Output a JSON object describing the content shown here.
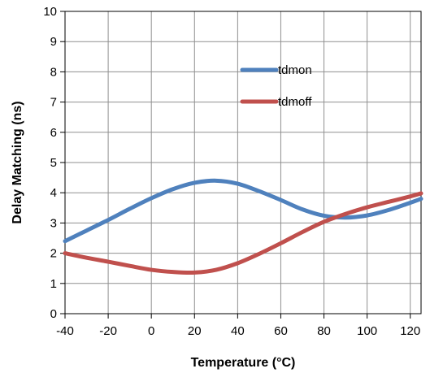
{
  "chart_data": {
    "type": "line",
    "title": "",
    "xlabel": "Temperature (°C)",
    "ylabel": "Delay Matching (ns)",
    "xlim": [
      -40,
      125
    ],
    "ylim": [
      0,
      10
    ],
    "xticks": [
      -40,
      -20,
      0,
      20,
      40,
      60,
      80,
      100,
      120
    ],
    "yticks": [
      0,
      1,
      2,
      3,
      4,
      5,
      6,
      7,
      8,
      9,
      10
    ],
    "grid": true,
    "legend_position": "top-center",
    "series": [
      {
        "name": "tdmon",
        "color": "#4f81bd",
        "points": [
          [
            -40,
            2.4
          ],
          [
            -30,
            2.75
          ],
          [
            -20,
            3.1
          ],
          [
            -10,
            3.47
          ],
          [
            0,
            3.82
          ],
          [
            10,
            4.12
          ],
          [
            20,
            4.33
          ],
          [
            30,
            4.4
          ],
          [
            40,
            4.3
          ],
          [
            50,
            4.05
          ],
          [
            60,
            3.76
          ],
          [
            70,
            3.45
          ],
          [
            80,
            3.24
          ],
          [
            90,
            3.18
          ],
          [
            100,
            3.25
          ],
          [
            110,
            3.43
          ],
          [
            120,
            3.67
          ],
          [
            125,
            3.8
          ]
        ]
      },
      {
        "name": "tdmoff",
        "color": "#c0504d",
        "points": [
          [
            -40,
            2.0
          ],
          [
            -30,
            1.85
          ],
          [
            -20,
            1.72
          ],
          [
            -10,
            1.58
          ],
          [
            0,
            1.45
          ],
          [
            10,
            1.38
          ],
          [
            20,
            1.36
          ],
          [
            30,
            1.45
          ],
          [
            40,
            1.67
          ],
          [
            50,
            1.98
          ],
          [
            60,
            2.33
          ],
          [
            70,
            2.7
          ],
          [
            80,
            3.04
          ],
          [
            90,
            3.3
          ],
          [
            100,
            3.52
          ],
          [
            110,
            3.7
          ],
          [
            120,
            3.88
          ],
          [
            125,
            3.98
          ]
        ]
      }
    ]
  }
}
